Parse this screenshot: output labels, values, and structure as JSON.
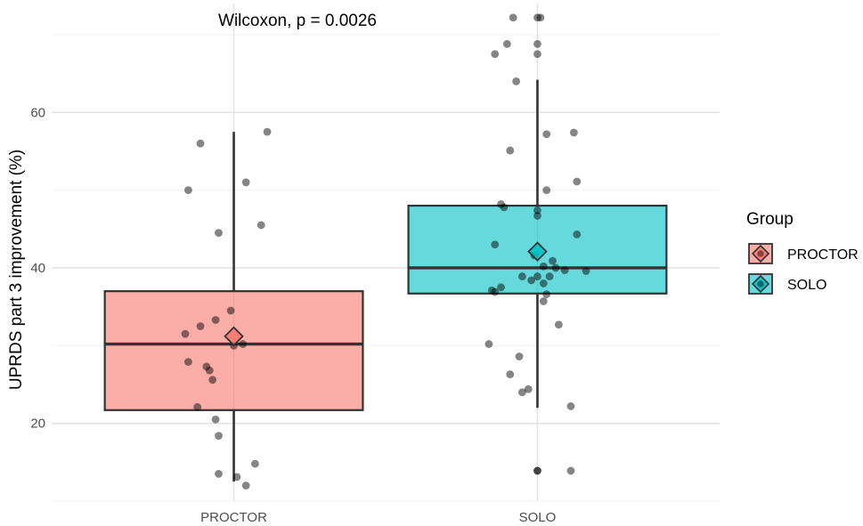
{
  "chart_data": {
    "type": "boxplot",
    "title": "",
    "annotation": "Wilcoxon, p = 0.0026",
    "xlabel": "",
    "ylabel": "UPRDS part 3 improvement (%)",
    "ylim": [
      10,
      74
    ],
    "yticks": [
      20,
      40,
      60
    ],
    "grid": true,
    "legend": {
      "title": "Group",
      "position": "right",
      "entries": [
        "PROCTOR",
        "SOLO"
      ]
    },
    "categories": [
      "PROCTOR",
      "SOLO"
    ],
    "series": [
      {
        "name": "PROCTOR",
        "color": "#F8766D",
        "box": {
          "whisker_low": 12.5,
          "q1": 21.7,
          "median": 30.2,
          "q3": 37.0,
          "whisker_high": 57.5,
          "mean": 31.2
        },
        "points": [
          {
            "x": 0.85,
            "y": 50.0
          },
          {
            "x": 0.89,
            "y": 56.0
          },
          {
            "x": 1.04,
            "y": 51.0
          },
          {
            "x": 1.11,
            "y": 57.5
          },
          {
            "x": 0.95,
            "y": 44.5
          },
          {
            "x": 1.09,
            "y": 45.5
          },
          {
            "x": 0.99,
            "y": 34.5
          },
          {
            "x": 0.94,
            "y": 33.3
          },
          {
            "x": 0.89,
            "y": 32.5
          },
          {
            "x": 0.84,
            "y": 31.5
          },
          {
            "x": 1.0,
            "y": 30.0
          },
          {
            "x": 1.03,
            "y": 30.2
          },
          {
            "x": 0.85,
            "y": 27.9
          },
          {
            "x": 0.91,
            "y": 27.3
          },
          {
            "x": 0.92,
            "y": 26.8
          },
          {
            "x": 0.93,
            "y": 25.6
          },
          {
            "x": 0.88,
            "y": 22.1
          },
          {
            "x": 0.94,
            "y": 20.5
          },
          {
            "x": 0.95,
            "y": 18.4
          },
          {
            "x": 0.95,
            "y": 13.5
          },
          {
            "x": 1.01,
            "y": 13.1
          },
          {
            "x": 1.07,
            "y": 14.8
          },
          {
            "x": 1.04,
            "y": 12.0
          }
        ]
      },
      {
        "name": "SOLO",
        "color": "#00BFC4",
        "box": {
          "whisker_low": 22.0,
          "q1": 36.7,
          "median": 40.0,
          "q3": 48.0,
          "whisker_high": 64.2,
          "mean": 42.1
        },
        "points": [
          {
            "x": 1.92,
            "y": 72.2
          },
          {
            "x": 2.01,
            "y": 72.2
          },
          {
            "x": 2.0,
            "y": 72.2
          },
          {
            "x": 1.86,
            "y": 67.5
          },
          {
            "x": 1.9,
            "y": 68.8
          },
          {
            "x": 2.0,
            "y": 68.8
          },
          {
            "x": 2.0,
            "y": 67.5
          },
          {
            "x": 1.93,
            "y": 64.0
          },
          {
            "x": 2.03,
            "y": 57.2
          },
          {
            "x": 2.12,
            "y": 57.4
          },
          {
            "x": 1.91,
            "y": 55.1
          },
          {
            "x": 2.13,
            "y": 51.1
          },
          {
            "x": 2.03,
            "y": 50.0
          },
          {
            "x": 1.88,
            "y": 48.2
          },
          {
            "x": 1.89,
            "y": 47.8
          },
          {
            "x": 2.0,
            "y": 47.4
          },
          {
            "x": 2.0,
            "y": 46.7
          },
          {
            "x": 2.13,
            "y": 44.3
          },
          {
            "x": 1.86,
            "y": 43.0
          },
          {
            "x": 1.99,
            "y": 41.6
          },
          {
            "x": 2.02,
            "y": 40.2
          },
          {
            "x": 2.05,
            "y": 40.9
          },
          {
            "x": 2.06,
            "y": 40.0
          },
          {
            "x": 2.09,
            "y": 39.7
          },
          {
            "x": 2.16,
            "y": 39.6
          },
          {
            "x": 1.95,
            "y": 38.9
          },
          {
            "x": 1.98,
            "y": 38.4
          },
          {
            "x": 2.0,
            "y": 38.9
          },
          {
            "x": 2.02,
            "y": 38.0
          },
          {
            "x": 2.04,
            "y": 38.9
          },
          {
            "x": 1.85,
            "y": 37.1
          },
          {
            "x": 1.86,
            "y": 36.9
          },
          {
            "x": 1.88,
            "y": 37.5
          },
          {
            "x": 2.03,
            "y": 36.6
          },
          {
            "x": 2.02,
            "y": 35.7
          },
          {
            "x": 2.07,
            "y": 32.7
          },
          {
            "x": 1.84,
            "y": 30.2
          },
          {
            "x": 1.94,
            "y": 28.6
          },
          {
            "x": 1.91,
            "y": 26.3
          },
          {
            "x": 1.97,
            "y": 24.4
          },
          {
            "x": 1.95,
            "y": 24.0
          },
          {
            "x": 2.11,
            "y": 22.2
          },
          {
            "x": 2.0,
            "y": 13.9
          },
          {
            "x": 2.0,
            "y": 13.9
          },
          {
            "x": 2.11,
            "y": 13.9
          }
        ]
      }
    ]
  }
}
